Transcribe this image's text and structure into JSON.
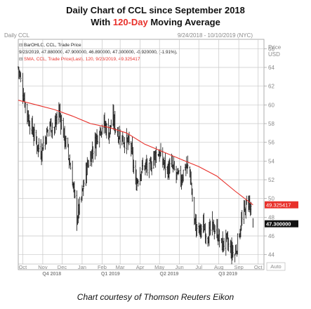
{
  "title_part1": "Daily Chart of CCL since September 2018",
  "title_part2a": "With ",
  "title_part2b": "120-Day",
  "title_part2c": " Moving Average",
  "caption": "Chart courtesy of Thomson Reuters Eikon",
  "header": {
    "chart_name": "Daily CCL",
    "date_range": "9/24/2018 - 10/10/2019 (NYC)",
    "price_label": "Price",
    "currency": "USD",
    "legend_ohlc_name": "BarOHLC, CCL, Trade Price",
    "legend_ohlc_values": "9/23/2019, 47.880000, 47.900000, 46.890000, 47.300000, -0.920000, (-1.91%),",
    "legend_sma": "SMA, CCL, Trade Price(Last), 120, 9/23/2019, 49.325417",
    "auto_label": "Auto"
  },
  "chart_data": {
    "type": "line",
    "title": "Daily Chart of CCL since September 2018 With 120-Day Moving Average",
    "ylim": [
      43,
      67
    ],
    "y_ticks": [
      44,
      46,
      48,
      50,
      52,
      54,
      56,
      58,
      60,
      62,
      64,
      66
    ],
    "x_months": [
      "Oct",
      "Nov",
      "Dec",
      "Jan",
      "Feb",
      "Mar",
      "Apr",
      "May",
      "Jun",
      "Jul",
      "Aug",
      "Sep",
      "Oct"
    ],
    "x_quarters": [
      "Q4 2018",
      "Q1 2019",
      "Q2 2019",
      "Q3 2019"
    ],
    "series": [
      {
        "name": "Daily price (OHLC)",
        "color": "#111111",
        "values": [
          [
            "2018-09-24",
            64.0
          ],
          [
            "2018-10-01",
            61.5
          ],
          [
            "2018-10-08",
            59.0
          ],
          [
            "2018-10-15",
            57.5
          ],
          [
            "2018-10-22",
            56.0
          ],
          [
            "2018-10-29",
            55.0
          ],
          [
            "2018-11-05",
            56.5
          ],
          [
            "2018-11-12",
            58.0
          ],
          [
            "2018-11-19",
            57.5
          ],
          [
            "2018-11-26",
            59.5
          ],
          [
            "2018-12-03",
            57.0
          ],
          [
            "2018-12-10",
            55.0
          ],
          [
            "2018-12-17",
            52.0
          ],
          [
            "2018-12-24",
            48.0
          ],
          [
            "2018-12-31",
            50.0
          ],
          [
            "2019-01-07",
            53.0
          ],
          [
            "2019-01-14",
            54.5
          ],
          [
            "2019-01-21",
            56.0
          ],
          [
            "2019-01-28",
            57.5
          ],
          [
            "2019-02-04",
            58.0
          ],
          [
            "2019-02-11",
            57.0
          ],
          [
            "2019-02-18",
            58.5
          ],
          [
            "2019-02-25",
            57.0
          ],
          [
            "2019-03-04",
            56.5
          ],
          [
            "2019-03-11",
            56.0
          ],
          [
            "2019-03-18",
            55.5
          ],
          [
            "2019-03-25",
            51.5
          ],
          [
            "2019-04-01",
            53.0
          ],
          [
            "2019-04-08",
            53.5
          ],
          [
            "2019-04-15",
            53.0
          ],
          [
            "2019-04-22",
            54.5
          ],
          [
            "2019-04-29",
            55.0
          ],
          [
            "2019-05-06",
            54.0
          ],
          [
            "2019-05-13",
            53.0
          ],
          [
            "2019-05-20",
            53.5
          ],
          [
            "2019-05-27",
            52.5
          ],
          [
            "2019-06-03",
            52.0
          ],
          [
            "2019-06-10",
            53.5
          ],
          [
            "2019-06-17",
            53.0
          ],
          [
            "2019-06-24",
            47.5
          ],
          [
            "2019-07-01",
            46.5
          ],
          [
            "2019-07-08",
            47.0
          ],
          [
            "2019-07-15",
            46.0
          ],
          [
            "2019-07-22",
            47.0
          ],
          [
            "2019-07-29",
            46.5
          ],
          [
            "2019-08-05",
            45.0
          ],
          [
            "2019-08-12",
            45.5
          ],
          [
            "2019-08-19",
            44.5
          ],
          [
            "2019-08-26",
            44.0
          ],
          [
            "2019-09-02",
            46.5
          ],
          [
            "2019-09-09",
            48.5
          ],
          [
            "2019-09-16",
            50.0
          ],
          [
            "2019-09-23",
            47.3
          ]
        ]
      },
      {
        "name": "SMA 120",
        "color": "#e8302a",
        "values": [
          [
            "2018-09-24",
            60.5
          ],
          [
            "2018-10-22",
            60.0
          ],
          [
            "2018-11-19",
            59.5
          ],
          [
            "2018-12-17",
            58.8
          ],
          [
            "2019-01-14",
            58.0
          ],
          [
            "2019-02-11",
            57.6
          ],
          [
            "2019-03-11",
            57.0
          ],
          [
            "2019-04-08",
            55.8
          ],
          [
            "2019-05-06",
            55.0
          ],
          [
            "2019-06-03",
            54.2
          ],
          [
            "2019-07-01",
            53.4
          ],
          [
            "2019-07-29",
            52.4
          ],
          [
            "2019-08-26",
            50.8
          ],
          [
            "2019-09-23",
            49.325417
          ]
        ]
      }
    ],
    "last_price_label": "47.300000",
    "last_sma_label": "49.325417",
    "legend": "top-left",
    "grid": true
  }
}
